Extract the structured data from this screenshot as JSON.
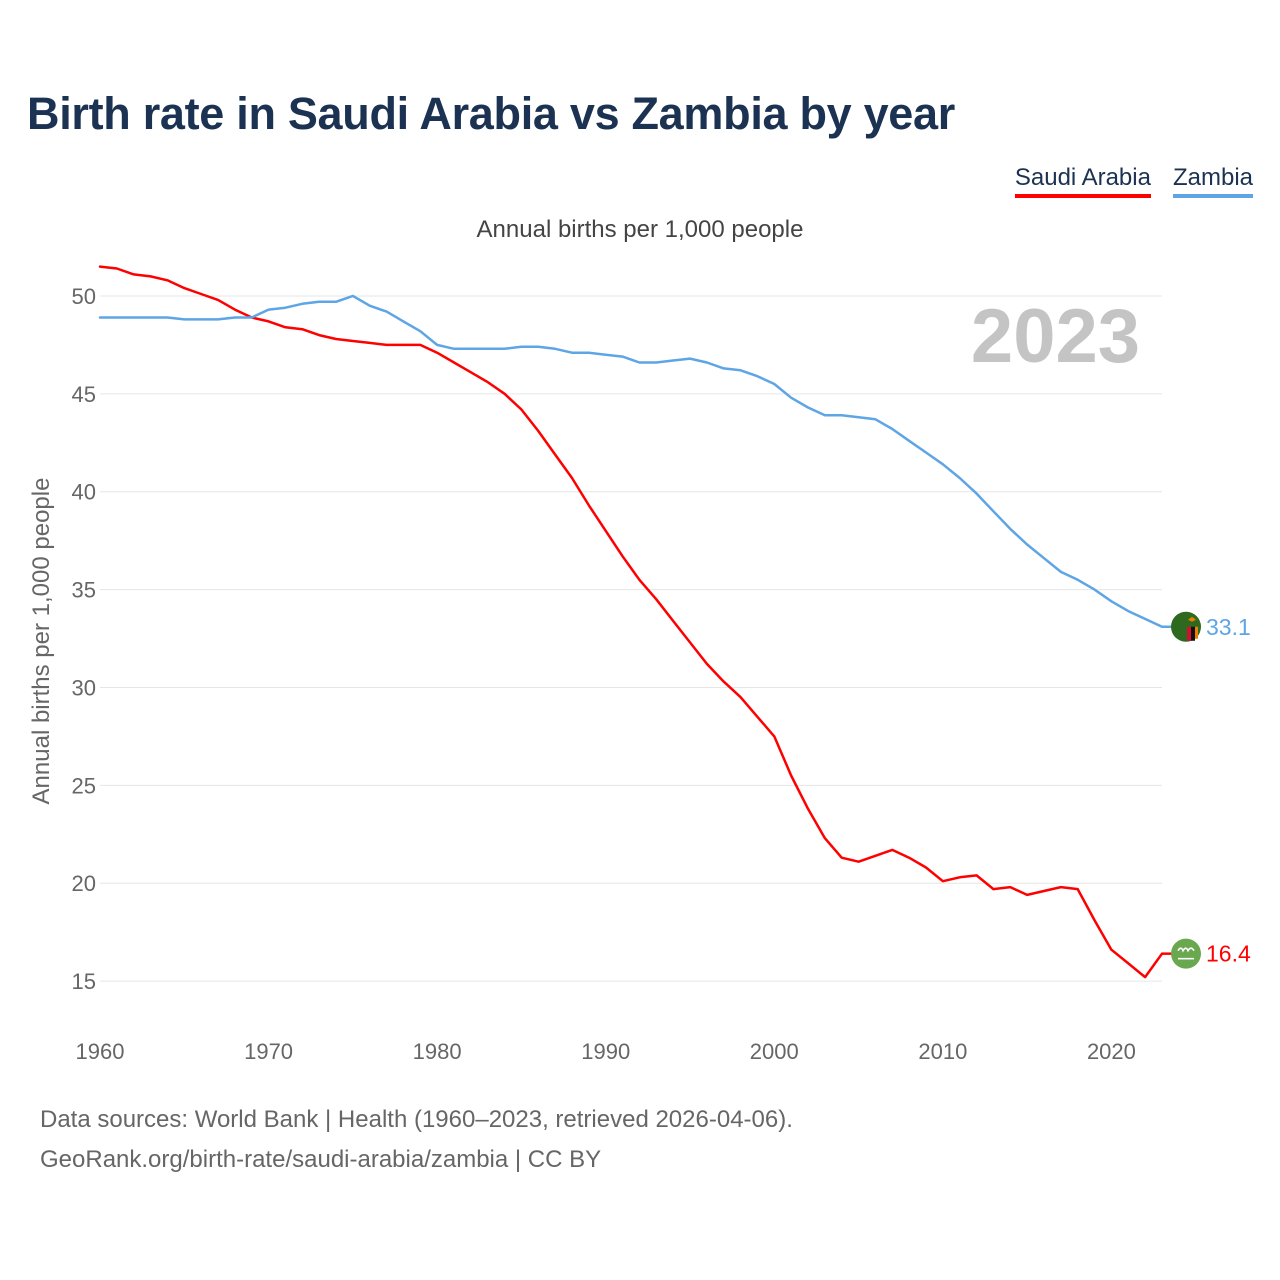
{
  "title": "Birth rate in Saudi Arabia vs Zambia by year",
  "legend": [
    "Saudi Arabia",
    "Zambia"
  ],
  "footer": {
    "line1": "Data sources: World Bank | Health (1960–2023, retrieved 2026-04-06).",
    "line2": "GeoRank.org/birth-rate/saudi-arabia/zambia | CC BY"
  },
  "chart_data": {
    "type": "line",
    "title": "Birth rate in Saudi Arabia vs Zambia by year",
    "subtitle": "Annual births per 1,000 people",
    "xlabel": "",
    "ylabel": "Annual births per 1,000 people",
    "xlim": [
      1960,
      2023
    ],
    "ylim": [
      12.5,
      52.5
    ],
    "x_ticks": [
      1960,
      1970,
      1980,
      1990,
      2000,
      2010,
      2020
    ],
    "y_ticks": [
      15,
      20,
      25,
      30,
      35,
      40,
      45,
      50
    ],
    "grid": true,
    "year_watermark": "2023",
    "x": [
      1960,
      1961,
      1962,
      1963,
      1964,
      1965,
      1966,
      1967,
      1968,
      1969,
      1970,
      1971,
      1972,
      1973,
      1974,
      1975,
      1976,
      1977,
      1978,
      1979,
      1980,
      1981,
      1982,
      1983,
      1984,
      1985,
      1986,
      1987,
      1988,
      1989,
      1990,
      1991,
      1992,
      1993,
      1994,
      1995,
      1996,
      1997,
      1998,
      1999,
      2000,
      2001,
      2002,
      2003,
      2004,
      2005,
      2006,
      2007,
      2008,
      2009,
      2010,
      2011,
      2012,
      2013,
      2014,
      2015,
      2016,
      2017,
      2018,
      2019,
      2020,
      2021,
      2022,
      2023
    ],
    "series": [
      {
        "name": "Saudi Arabia",
        "color": "#ff0000",
        "end_label": "16.4",
        "values": [
          51.5,
          51.4,
          51.1,
          51.0,
          50.8,
          50.4,
          50.1,
          49.8,
          49.3,
          48.9,
          48.7,
          48.4,
          48.3,
          48.0,
          47.8,
          47.7,
          47.6,
          47.5,
          47.5,
          47.5,
          47.1,
          46.6,
          46.1,
          45.6,
          45.0,
          44.2,
          43.1,
          41.9,
          40.7,
          39.3,
          38.0,
          36.7,
          35.5,
          34.5,
          33.4,
          32.3,
          31.2,
          30.3,
          29.5,
          28.5,
          27.5,
          25.5,
          23.8,
          22.3,
          21.3,
          21.1,
          21.4,
          21.7,
          21.3,
          20.8,
          20.1,
          20.3,
          20.4,
          19.7,
          19.8,
          19.4,
          19.6,
          19.8,
          19.7,
          18.1,
          16.6,
          15.9,
          15.2,
          16.4
        ]
      },
      {
        "name": "Zambia",
        "color": "#5ea5e6",
        "end_label": "33.1",
        "values": [
          48.9,
          48.9,
          48.9,
          48.9,
          48.9,
          48.8,
          48.8,
          48.8,
          48.9,
          48.9,
          49.3,
          49.4,
          49.6,
          49.7,
          49.7,
          50.0,
          49.5,
          49.2,
          48.7,
          48.2,
          47.5,
          47.3,
          47.3,
          47.3,
          47.3,
          47.4,
          47.4,
          47.3,
          47.1,
          47.1,
          47.0,
          46.9,
          46.6,
          46.6,
          46.7,
          46.8,
          46.6,
          46.3,
          46.2,
          45.9,
          45.5,
          44.8,
          44.3,
          43.9,
          43.9,
          43.8,
          43.7,
          43.2,
          42.6,
          42.0,
          41.4,
          40.7,
          39.9,
          39.0,
          38.1,
          37.3,
          36.6,
          35.9,
          35.5,
          35.0,
          34.4,
          33.9,
          33.5,
          33.1
        ]
      }
    ]
  }
}
